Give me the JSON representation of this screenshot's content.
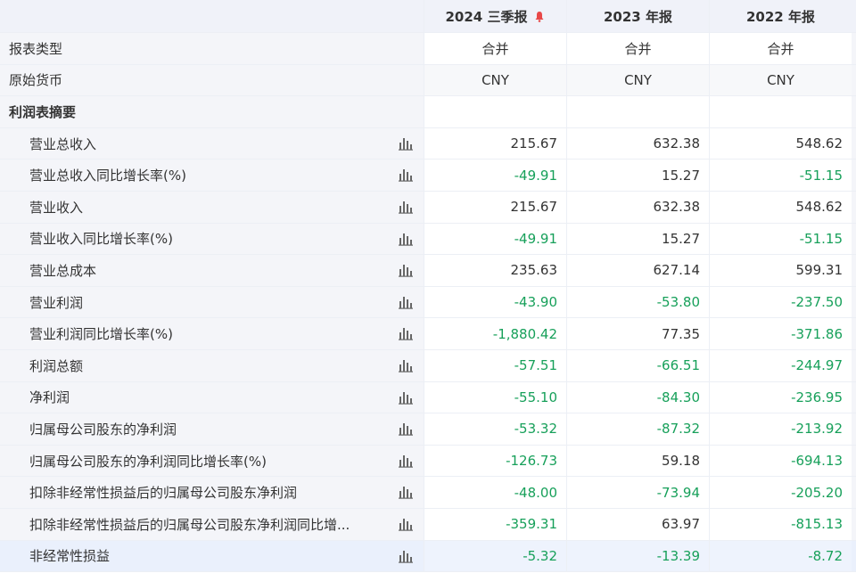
{
  "header": {
    "columns": [
      "2024 三季报",
      "2023 年报",
      "2022 年报"
    ]
  },
  "meta_rows": [
    {
      "label": "报表类型",
      "cells": [
        "合并",
        "合并",
        "合并"
      ]
    },
    {
      "label": "原始货币",
      "cells": [
        "CNY",
        "CNY",
        "CNY"
      ]
    }
  ],
  "section": {
    "title": "利润表摘要",
    "rows": [
      {
        "label": "营业总收入",
        "cells": [
          "215.67",
          "632.38",
          "548.62"
        ]
      },
      {
        "label": "营业总收入同比增长率(%)",
        "cells": [
          "-49.91",
          "15.27",
          "-51.15"
        ]
      },
      {
        "label": "营业收入",
        "cells": [
          "215.67",
          "632.38",
          "548.62"
        ]
      },
      {
        "label": "营业收入同比增长率(%)",
        "cells": [
          "-49.91",
          "15.27",
          "-51.15"
        ]
      },
      {
        "label": "营业总成本",
        "cells": [
          "235.63",
          "627.14",
          "599.31"
        ]
      },
      {
        "label": "营业利润",
        "cells": [
          "-43.90",
          "-53.80",
          "-237.50"
        ]
      },
      {
        "label": "营业利润同比增长率(%)",
        "cells": [
          "-1,880.42",
          "77.35",
          "-371.86"
        ]
      },
      {
        "label": "利润总额",
        "cells": [
          "-57.51",
          "-66.51",
          "-244.97"
        ]
      },
      {
        "label": "净利润",
        "cells": [
          "-55.10",
          "-84.30",
          "-236.95"
        ]
      },
      {
        "label": "归属母公司股东的净利润",
        "cells": [
          "-53.32",
          "-87.32",
          "-213.92"
        ]
      },
      {
        "label": "归属母公司股东的净利润同比增长率(%)",
        "cells": [
          "-126.73",
          "59.18",
          "-694.13"
        ]
      },
      {
        "label": "扣除非经常性损益后的归属母公司股东净利润",
        "cells": [
          "-48.00",
          "-73.94",
          "-205.20"
        ]
      },
      {
        "label": "扣除非经常性损益后的归属母公司股东净利润同比增...",
        "cells": [
          "-359.31",
          "63.97",
          "-815.13"
        ]
      },
      {
        "label": "非经常性损益",
        "cells": [
          "-5.32",
          "-13.39",
          "-8.72"
        ]
      }
    ]
  }
}
